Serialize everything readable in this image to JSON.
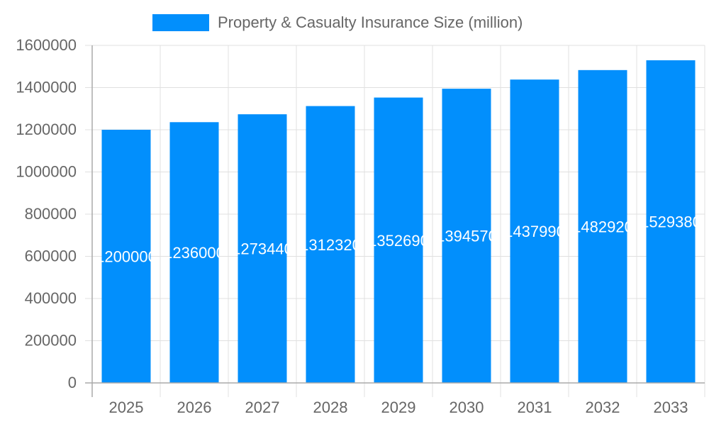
{
  "chart_data": {
    "type": "bar",
    "title": "",
    "xlabel": "",
    "ylabel": "",
    "categories": [
      "2025",
      "2026",
      "2027",
      "2028",
      "2029",
      "2030",
      "2031",
      "2032",
      "2033"
    ],
    "series": [
      {
        "name": "Property & Casualty Insurance Size (million)",
        "values": [
          1200000,
          1236000,
          1273440,
          1312320,
          1352690,
          1394570,
          1437990,
          1482920,
          1529380
        ]
      }
    ],
    "ylim": [
      0,
      1600000
    ],
    "yticks": [
      0,
      200000,
      400000,
      600000,
      800000,
      1000000,
      1200000,
      1400000,
      1600000
    ],
    "grid": true,
    "legend": "top",
    "data_labels": true,
    "colors": {
      "bar": "#028ffc",
      "grid": "#e0e0e0",
      "text": "#666666",
      "label": "#ffffff"
    }
  }
}
